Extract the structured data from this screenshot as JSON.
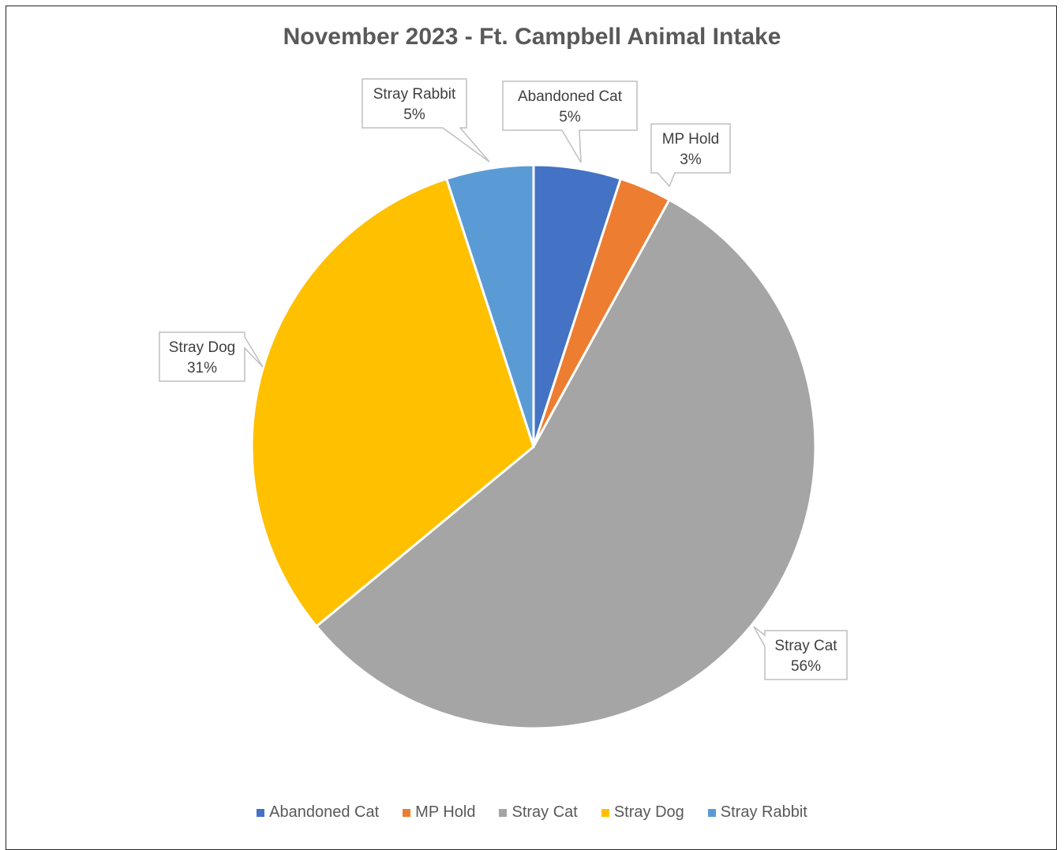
{
  "chart_data": {
    "type": "pie",
    "title": "November 2023 - Ft. Campbell Animal Intake",
    "slices": [
      {
        "label": "Abandoned Cat",
        "value": 5,
        "display": "5%",
        "color": "#4472C4"
      },
      {
        "label": "MP Hold",
        "value": 3,
        "display": "3%",
        "color": "#ED7D31"
      },
      {
        "label": "Stray Cat",
        "value": 56,
        "display": "56%",
        "color": "#A5A5A5"
      },
      {
        "label": "Stray Dog",
        "value": 31,
        "display": "31%",
        "color": "#FFC000"
      },
      {
        "label": "Stray Rabbit",
        "value": 5,
        "display": "5%",
        "color": "#5B9BD5"
      }
    ],
    "legend_position": "bottom"
  }
}
